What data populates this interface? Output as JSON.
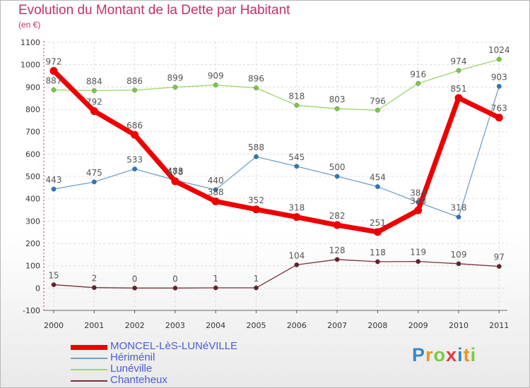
{
  "title": "Evolution du Montant de la Dette par Habitant",
  "subtitle": "(en €)",
  "logo": "Proxiti",
  "chart_data": {
    "type": "line",
    "x": [
      "2000",
      "2001",
      "2002",
      "2003",
      "2004",
      "2005",
      "2006",
      "2007",
      "2008",
      "2009",
      "2010",
      "2011"
    ],
    "ylim": [
      -100,
      1100
    ],
    "yticks": [
      -100,
      0,
      100,
      200,
      300,
      400,
      500,
      600,
      700,
      800,
      900,
      1000,
      1100
    ],
    "grid": true,
    "legend_position": "bottom-left",
    "series": [
      {
        "name": "Hériménil",
        "color": "#6fa0cc",
        "marker_color": "#2a77c0",
        "width": 1.3,
        "values": [
          443,
          475,
          533,
          483,
          440,
          588,
          545,
          500,
          454,
          384,
          318,
          903
        ],
        "labels": [
          "443",
          "475",
          "533",
          "483",
          "440",
          "588",
          "545",
          "500",
          "454",
          "384",
          "318",
          "903"
        ]
      },
      {
        "name": "Lunéville",
        "color": "#9ad66a",
        "marker_color": "#7ac943",
        "width": 1.3,
        "values": [
          887,
          884,
          886,
          899,
          909,
          896,
          818,
          803,
          796,
          916,
          974,
          1024
        ],
        "labels": [
          "887",
          "884",
          "886",
          "899",
          "909",
          "896",
          "818",
          "803",
          "796",
          "916",
          "974",
          "1024"
        ]
      },
      {
        "name": "Chanteheux",
        "color": "#7b2f3a",
        "marker_color": "#6a1f2a",
        "width": 1.3,
        "values": [
          15,
          2,
          0,
          0,
          1,
          1,
          104,
          128,
          118,
          119,
          109,
          97
        ],
        "labels": [
          "15",
          "2",
          "0",
          "0",
          "1",
          "1",
          "104",
          "128",
          "118",
          "119",
          "109",
          "97"
        ]
      },
      {
        "name": "MONCEL-LèS-LUNéVILLE",
        "color": "#ee0000",
        "marker_color": "#ee0000",
        "width": 7,
        "values": [
          972,
          792,
          686,
          478,
          388,
          352,
          318,
          282,
          251,
          348,
          851,
          763
        ],
        "labels": [
          "972",
          "792",
          "686",
          "478",
          "388",
          "352",
          "318",
          "282",
          "251",
          "348",
          "851",
          "763"
        ]
      }
    ]
  },
  "legend": [
    {
      "label": "MONCEL-LèS-LUNéVILLE",
      "color": "#ee0000",
      "thickness": 7
    },
    {
      "label": "Hériménil",
      "color": "#6fa0cc",
      "thickness": 2
    },
    {
      "label": "Lunéville",
      "color": "#9ad66a",
      "thickness": 2
    },
    {
      "label": "Chanteheux",
      "color": "#7b2f3a",
      "thickness": 2
    }
  ]
}
